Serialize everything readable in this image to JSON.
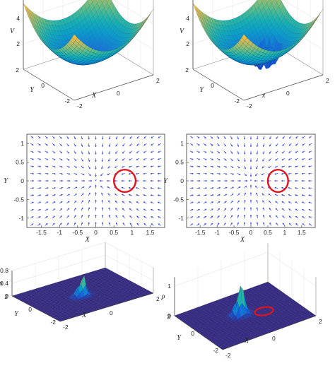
{
  "chart_data": [
    {
      "type": "surface3d",
      "zlabel": "V",
      "xlabel": "X",
      "ylabel": "Y",
      "z_ticks": [
        "2",
        "4",
        "6"
      ],
      "x_ticks": [
        "-2",
        "0",
        "2"
      ],
      "y_ticks": [
        "-2",
        "0",
        "2"
      ],
      "colormap": "parula",
      "description_values": {
        "zlim": [
          0,
          6
        ],
        "xlim": [
          -2,
          2
        ],
        "ylim": [
          -2,
          2
        ]
      }
    },
    {
      "type": "surface3d",
      "zlabel": "V",
      "xlabel": "x",
      "ylabel": "Y",
      "z_ticks": [
        "2",
        "4",
        "6"
      ],
      "x_ticks": [
        "-2",
        "0",
        "2"
      ],
      "y_ticks": [
        "-2",
        "0",
        "2"
      ],
      "colormap": "parula",
      "description_values": {
        "zlim": [
          0,
          6
        ],
        "xlim": [
          -2,
          2
        ],
        "ylim": [
          -2,
          2
        ]
      }
    },
    {
      "type": "quiver",
      "xlabel": "X",
      "ylabel": "Y",
      "x_ticks": [
        "-1.5",
        "-1",
        "-0.5",
        "0",
        "0.5",
        "1",
        "1.5"
      ],
      "y_ticks": [
        "1",
        "0.5",
        "0",
        "-0.5",
        "-1"
      ],
      "xlim": [
        -1.9,
        1.9
      ],
      "ylim": [
        -1.25,
        1.25
      ],
      "arrow_color": "#2e3fd6",
      "circle": {
        "cx": 0.8,
        "cy": 0.0,
        "r": 0.3,
        "color": "#e0141e"
      }
    },
    {
      "type": "quiver",
      "xlabel": "X",
      "ylabel": "Y",
      "x_ticks": [
        "-1.5",
        "-1",
        "-0.5",
        "0",
        "0.5",
        "1",
        "1.5"
      ],
      "y_ticks": [
        "1",
        "0.5",
        "0",
        "-0.5",
        "-1"
      ],
      "xlim": [
        -1.9,
        1.9
      ],
      "ylim": [
        -1.25,
        1.25
      ],
      "arrow_color": "#2e3fd6",
      "circle": {
        "cx": 0.8,
        "cy": 0.0,
        "r": 0.3,
        "color": "#e0141e"
      }
    },
    {
      "type": "surface3d",
      "zlabel": "ρ",
      "xlabel": "X",
      "ylabel": "Y",
      "z_ticks": [
        "0",
        "0.4",
        "0.8"
      ],
      "x_ticks": [
        "-2",
        "0",
        "2"
      ],
      "y_ticks": [
        "-2",
        "0",
        "2"
      ],
      "colormap": "parula"
    },
    {
      "type": "surface3d",
      "zlabel": "ρ",
      "xlabel": "X",
      "ylabel": "Y",
      "z_ticks": [
        "0",
        "1"
      ],
      "x_ticks": [
        "-2",
        "0",
        "2"
      ],
      "y_ticks": [
        "-2",
        "0",
        "2"
      ],
      "colormap": "parula",
      "ring_color": "#e0141e"
    }
  ]
}
